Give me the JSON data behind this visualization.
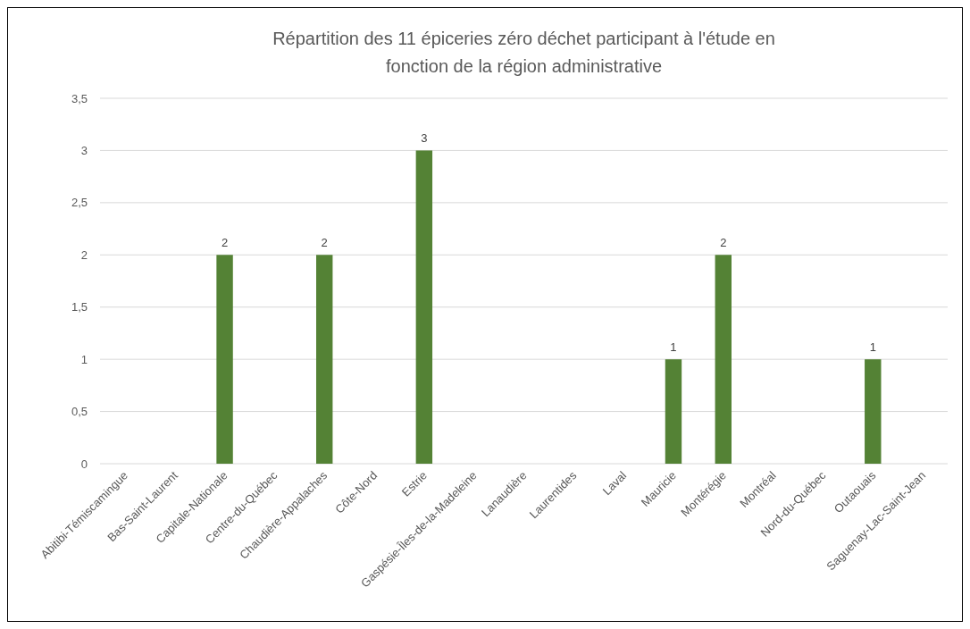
{
  "chart_data": {
    "type": "bar",
    "title": "Répartition des 11 épiceries zéro déchet participant à l'étude en fonction de la région administrative",
    "categories": [
      "Abitibi-Témiscamingue",
      "Bas-Saint-Laurent",
      "Capitale-Nationale",
      "Centre-du-Québec",
      "Chaudière-Appalaches",
      "Côte-Nord",
      "Estrie",
      "Gaspésie-Îles-de-la-Madeleine",
      "Lanaudière",
      "Laurentides",
      "Laval",
      "Mauricie",
      "Montérégie",
      "Montréal",
      "Nord-du-Québec",
      "Outaouais",
      "Saguenay-Lac-Saint-Jean"
    ],
    "values": [
      0,
      0,
      2,
      0,
      2,
      0,
      3,
      0,
      0,
      0,
      0,
      1,
      2,
      0,
      0,
      1,
      0
    ],
    "value_labels": [
      null,
      null,
      "2",
      null,
      "2",
      null,
      "3",
      null,
      null,
      null,
      null,
      "1",
      "2",
      null,
      null,
      "1",
      null
    ],
    "color": "#548235",
    "ylim": [
      0,
      3.5
    ],
    "yticks": [
      {
        "value": 0,
        "label": "0"
      },
      {
        "value": 0.5,
        "label": "0,5"
      },
      {
        "value": 1,
        "label": "1"
      },
      {
        "value": 1.5,
        "label": "1,5"
      },
      {
        "value": 2,
        "label": "2"
      },
      {
        "value": 2.5,
        "label": "2,5"
      },
      {
        "value": 3,
        "label": "3"
      },
      {
        "value": 3.5,
        "label": "3,5"
      }
    ],
    "grid": "y"
  }
}
